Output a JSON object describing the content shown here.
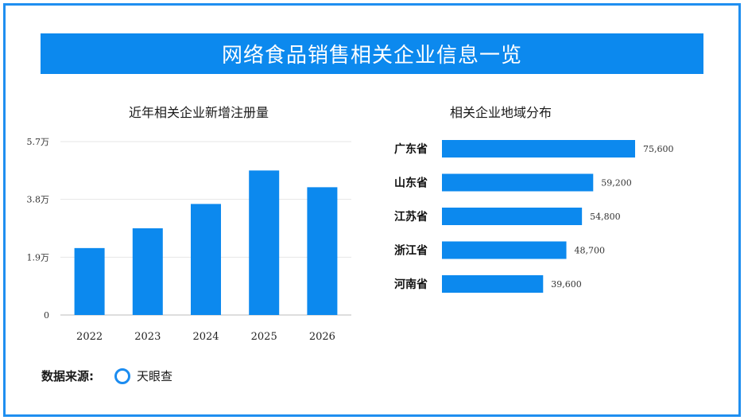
{
  "title": "网络食品销售相关企业信息一览",
  "source": {
    "label": "数据来源:",
    "name": "天眼查",
    "icon": "ring-logo-icon"
  },
  "colors": {
    "bar": "#0c89ee",
    "frame": "#1f8ff0"
  },
  "chart_data": [
    {
      "type": "bar",
      "title": "近年相关企业新增注册量",
      "categories": [
        "2022",
        "2023",
        "2024",
        "2025",
        "2026"
      ],
      "values": [
        22000,
        28500,
        36500,
        47500,
        42000
      ],
      "ytick_labels": [
        "0",
        "1.9万",
        "3.8万",
        "5.7万"
      ],
      "ytick_values": [
        0,
        19000,
        38000,
        57000
      ],
      "ylim": [
        0,
        57000
      ],
      "grid": true
    },
    {
      "type": "bar",
      "orientation": "horizontal",
      "title": "相关企业地域分布",
      "categories": [
        "广东省",
        "山东省",
        "江苏省",
        "浙江省",
        "河南省"
      ],
      "values": [
        75600,
        59200,
        54800,
        48700,
        39600
      ],
      "value_labels": [
        "75,600",
        "59,200",
        "54,800",
        "48,700",
        "39,600"
      ]
    }
  ]
}
